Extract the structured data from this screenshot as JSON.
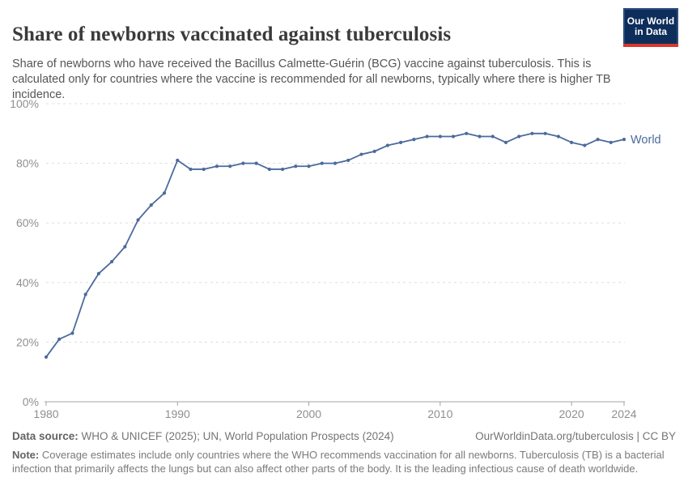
{
  "header": {
    "title": "Share of newborns vaccinated against tuberculosis",
    "subtitle": "Share of newborns who have received the Bacillus Calmette-Guérin (BCG) vaccine against tuberculosis. This is calculated only for countries where the vaccine is recommended for all newborns, typically where there is higher TB incidence.",
    "logo": {
      "line1": "Our World",
      "line2": "in Data"
    }
  },
  "chart_data": {
    "type": "line",
    "series": [
      {
        "name": "World",
        "x": [
          1980,
          1981,
          1982,
          1983,
          1984,
          1985,
          1986,
          1987,
          1988,
          1989,
          1990,
          1991,
          1992,
          1993,
          1994,
          1995,
          1996,
          1997,
          1998,
          1999,
          2000,
          2001,
          2002,
          2003,
          2004,
          2005,
          2006,
          2007,
          2008,
          2009,
          2010,
          2011,
          2012,
          2013,
          2014,
          2015,
          2016,
          2017,
          2018,
          2019,
          2020,
          2021,
          2022,
          2023,
          2024
        ],
        "values": [
          15,
          21,
          23,
          36,
          43,
          47,
          52,
          61,
          66,
          70,
          81,
          78,
          78,
          79,
          79,
          80,
          80,
          78,
          78,
          79,
          79,
          80,
          80,
          81,
          83,
          84,
          86,
          87,
          88,
          89,
          89,
          89,
          90,
          89,
          89,
          87,
          89,
          90,
          90,
          89,
          87,
          86,
          88,
          87,
          88
        ]
      }
    ],
    "unit": "%",
    "xlim": [
      1980,
      2024
    ],
    "ylim": [
      0,
      100
    ],
    "ytick_values": [
      0,
      20,
      40,
      60,
      80,
      100
    ],
    "ytick_labels": [
      "0%",
      "20%",
      "40%",
      "60%",
      "80%",
      "100%"
    ],
    "xtick_values": [
      1980,
      1990,
      2000,
      2010,
      2020,
      2024
    ],
    "xtick_labels": [
      "1980",
      "1990",
      "2000",
      "2010",
      "2020",
      "2024"
    ],
    "grid": "dashed-horizontal",
    "legend_position": "end-of-line",
    "line_color": "#4c6a9c",
    "grid_color": "#dddddd",
    "axis_color": "#a3a3a3",
    "tick_text_color": "#8f8f8f"
  },
  "footer": {
    "source_label": "Data source:",
    "source_text": "WHO & UNICEF (2025); UN, World Population Prospects (2024)",
    "link_text": "OurWorldinData.org/tuberculosis | CC BY",
    "note_label": "Note:",
    "note_text": "Coverage estimates include only countries where the WHO recommends vaccination for all newborns. Tuberculosis (TB) is a bacterial infection that primarily affects the lungs but can also affect other parts of the body. It is the leading infectious cause of death worldwide."
  }
}
